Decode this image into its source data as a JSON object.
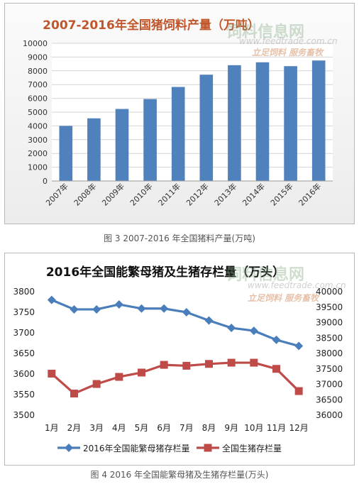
{
  "watermark": {
    "brand": "饲料信息网",
    "url": "www.feedtrade.com.cn",
    "slogan": "立足饲料  服务畜牧"
  },
  "captions": {
    "fig3": "图 3 2007-2016 年全国猪料产量(万吨)",
    "fig4": "图 4 2016 年全国能繁母猪及生猪存栏量(万头)"
  },
  "chart_data": [
    {
      "type": "bar",
      "title": "2007-2016年全国猪饲料产量（万吨）",
      "categories": [
        "2007年",
        "2008年",
        "2009年",
        "2010年",
        "2011年",
        "2012年",
        "2013年",
        "2014年",
        "2015年",
        "2016年"
      ],
      "values": [
        4000,
        4550,
        5230,
        5950,
        6830,
        7720,
        8410,
        8620,
        8340,
        8750
      ],
      "ylim": [
        0,
        10000
      ],
      "yticks": [
        0,
        1000,
        2000,
        3000,
        4000,
        5000,
        6000,
        7000,
        8000,
        9000,
        10000
      ],
      "grid": true,
      "bar_color": "#4f81bd"
    },
    {
      "type": "line",
      "title": "2016年全国能繁母猪及生猪存栏量（万头）",
      "categories": [
        "1月",
        "2月",
        "3月",
        "4月",
        "5月",
        "6月",
        "7月",
        "8月",
        "9月",
        "10月",
        "11月",
        "12月"
      ],
      "series": [
        {
          "name": "2016年全国能繁母猪存栏量",
          "axis": "left",
          "color": "#4a7ebb",
          "marker": "diamond",
          "values": [
            3780,
            3757,
            3757,
            3769,
            3759,
            3759,
            3750,
            3730,
            3712,
            3705,
            3683,
            3668
          ]
        },
        {
          "name": "全国生猪存栏量",
          "axis": "right",
          "color": "#be4b48",
          "marker": "square",
          "values": [
            37345,
            36700,
            37010,
            37240,
            37380,
            37630,
            37600,
            37660,
            37700,
            37700,
            37500,
            36780
          ]
        }
      ],
      "y_left": {
        "lim": [
          3500,
          3800
        ],
        "ticks": [
          3500,
          3550,
          3600,
          3650,
          3700,
          3750,
          3800
        ]
      },
      "y_right": {
        "lim": [
          36000,
          40000
        ],
        "ticks": [
          36000,
          36500,
          37000,
          37500,
          38000,
          38500,
          39000,
          39500,
          40000
        ]
      },
      "legend": "bottom",
      "grid": false
    }
  ]
}
